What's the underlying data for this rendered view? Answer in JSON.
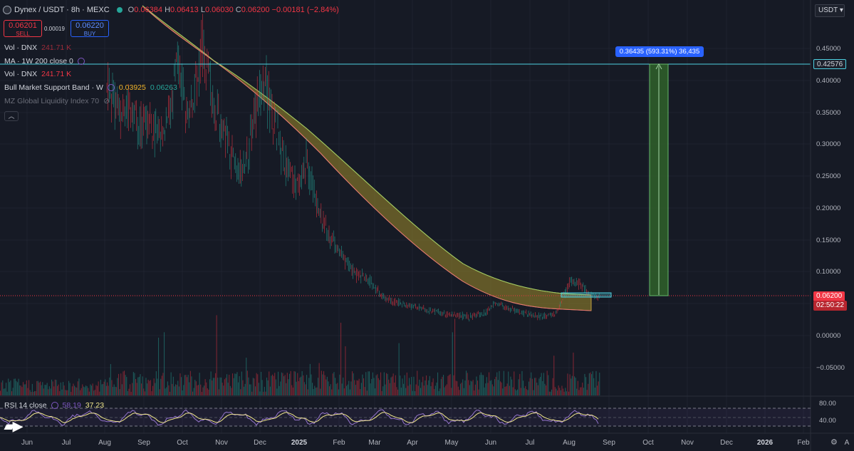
{
  "header": {
    "symbol": "Dynex / USDT · 8h · MEXC",
    "ohlc": {
      "o_label": "O",
      "o": "0.06384",
      "h_label": "H",
      "h": "0.06413",
      "l_label": "L",
      "l": "0.06030",
      "c_label": "C",
      "c": "0.06200",
      "change": "−0.00181 (−2.84%)"
    }
  },
  "trade": {
    "sell_price": "0.06201",
    "sell_label": "SELL",
    "spread": "0.00019",
    "buy_price": "0.06220",
    "buy_label": "BUY"
  },
  "indicators": [
    {
      "name": "Vol · DNX",
      "value": "241.71 K"
    },
    {
      "name": "MA · 1W 200 close 0"
    },
    {
      "name": "Vol · DNX",
      "value": "241.71 K"
    },
    {
      "name": "Bull Market Support Band · W",
      "value1": "0.03925",
      "value2": "0.06263"
    },
    {
      "name": "MZ Global Liquidity Index 70"
    }
  ],
  "currency_selector": "USDT",
  "price_axis": {
    "ticks": [
      "0.45000",
      "0.40000",
      "0.35000",
      "0.30000",
      "0.25000",
      "0.20000",
      "0.15000",
      "0.10000",
      "0.05000",
      "0.00000",
      "−0.05000"
    ],
    "tag_high": "0.42576",
    "tag_current": "0.06200",
    "tag_countdown": "02:50:22"
  },
  "measure_label": "0.36435 (593.31%) 36,435",
  "rsi": {
    "label": "RSI 14 close",
    "value1": "58.19",
    "value2": "37.23",
    "ticks": [
      "80.00",
      "40.00"
    ]
  },
  "time_axis": [
    "Jun",
    "Jul",
    "Aug",
    "Sep",
    "Oct",
    "Nov",
    "Dec",
    "2025",
    "Feb",
    "Mar",
    "Apr",
    "May",
    "Jun",
    "Jul",
    "Aug",
    "Sep",
    "Oct",
    "Nov",
    "Dec",
    "2026",
    "Feb",
    "A"
  ],
  "colors": {
    "background": "#161a25",
    "up": "#26a69a",
    "down": "#f23645",
    "accent": "#2962ff",
    "band_fill": "#8a7a2a",
    "measure_fill": "#2e5d2a"
  },
  "icons": [
    "live-dot-icon",
    "eye-off-icon",
    "chevron-up-icon",
    "gear-icon",
    "tradingview-logo-icon"
  ]
}
